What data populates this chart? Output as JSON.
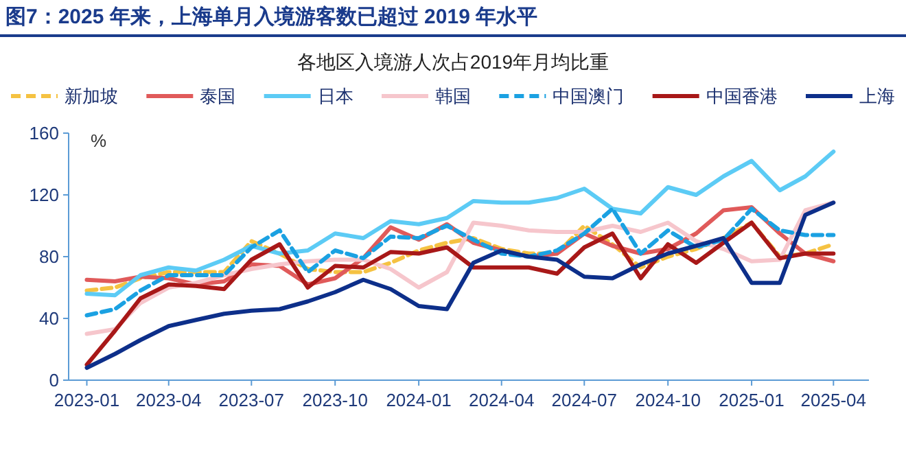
{
  "chart_data": {
    "type": "line",
    "title": "图7：2025 年来，上海单月入境游客数已超过 2019 年水平",
    "subtitle": "各地区入境游人次占2019年月均比重",
    "ylabel": "%",
    "x": [
      "2023-01",
      "2023-02",
      "2023-03",
      "2023-04",
      "2023-05",
      "2023-06",
      "2023-07",
      "2023-08",
      "2023-09",
      "2023-10",
      "2023-11",
      "2023-12",
      "2024-01",
      "2024-02",
      "2024-03",
      "2024-04",
      "2024-05",
      "2024-06",
      "2024-07",
      "2024-08",
      "2024-09",
      "2024-10",
      "2024-11",
      "2024-12",
      "2025-01",
      "2025-02",
      "2025-03",
      "2025-04"
    ],
    "xlim": [
      "2022-12-12",
      "2025-05-10"
    ],
    "xticks": [
      "2023-01",
      "2023-04",
      "2023-07",
      "2023-10",
      "2024-01",
      "2024-04",
      "2024-07",
      "2024-10",
      "2025-01",
      "2025-04"
    ],
    "ylim": [
      0,
      160
    ],
    "yticks": [
      0,
      40,
      80,
      120,
      160
    ],
    "grid": false,
    "legend": "top",
    "marker": "none",
    "series": [
      {
        "name": "新加坡",
        "color": "#f5c242",
        "line_style": "dashed",
        "values": [
          58,
          60,
          66,
          70,
          70,
          70,
          90,
          82,
          72,
          70,
          70,
          76,
          84,
          89,
          92,
          85,
          82,
          82,
          100,
          88,
          73,
          80,
          85,
          92,
          102,
          80,
          82,
          88
        ]
      },
      {
        "name": "泰国",
        "color": "#e05a5a",
        "line_style": "solid",
        "values": [
          65,
          64,
          67,
          66,
          62,
          64,
          75,
          74,
          62,
          66,
          79,
          99,
          91,
          101,
          89,
          84,
          80,
          82,
          95,
          87,
          82,
          85,
          95,
          110,
          112,
          95,
          82,
          77
        ]
      },
      {
        "name": "日本",
        "color": "#5ccbf5",
        "line_style": "solid",
        "values": [
          56,
          55,
          68,
          73,
          71,
          78,
          87,
          82,
          84,
          95,
          92,
          103,
          101,
          105,
          116,
          115,
          115,
          118,
          124,
          111,
          108,
          125,
          120,
          132,
          142,
          123,
          132,
          148
        ]
      },
      {
        "name": "韩国",
        "color": "#f6c6cc",
        "line_style": "solid",
        "values": [
          30,
          33,
          50,
          60,
          63,
          68,
          72,
          75,
          77,
          78,
          78,
          72,
          60,
          70,
          102,
          100,
          97,
          96,
          96,
          100,
          96,
          102,
          90,
          85,
          77,
          78,
          110,
          115
        ]
      },
      {
        "name": "中国澳门",
        "color": "#1ba1e2",
        "line_style": "dashed",
        "values": [
          42,
          46,
          58,
          68,
          68,
          68,
          86,
          97,
          70,
          84,
          79,
          93,
          92,
          100,
          91,
          82,
          80,
          84,
          95,
          111,
          82,
          97,
          86,
          91,
          111,
          97,
          94,
          94
        ]
      },
      {
        "name": "中国香港",
        "color": "#a81818",
        "line_style": "solid",
        "values": [
          10,
          32,
          53,
          62,
          61,
          59,
          78,
          88,
          60,
          74,
          73,
          83,
          82,
          86,
          73,
          73,
          73,
          69,
          86,
          95,
          66,
          88,
          76,
          89,
          102,
          79,
          82,
          82
        ]
      },
      {
        "name": "上海",
        "color": "#0d2f8a",
        "line_style": "solid",
        "values": [
          8,
          17,
          26,
          35,
          39,
          43,
          45,
          46,
          51,
          57,
          65,
          59,
          48,
          46,
          76,
          84,
          80,
          78,
          67,
          66,
          75,
          82,
          87,
          92,
          63,
          63,
          107,
          115
        ]
      }
    ]
  }
}
